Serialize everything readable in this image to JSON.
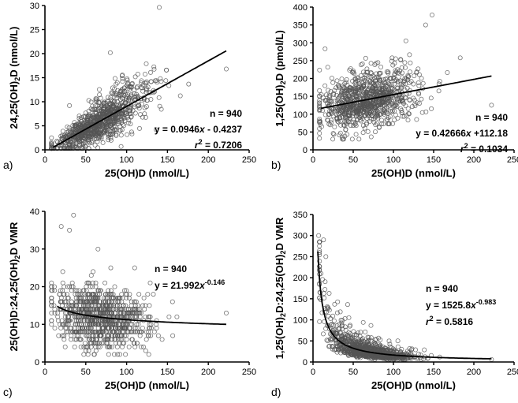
{
  "chart_data": [
    {
      "id": "a",
      "panel_label": "a)",
      "type": "scatter",
      "xlabel": "25(OH)D (nmol/L)",
      "ylabel": "24,25(OH)₂D (nmol/L)",
      "xlim": [
        0,
        250
      ],
      "ylim": [
        0,
        30
      ],
      "xticks": [
        0,
        50,
        100,
        150,
        200,
        250
      ],
      "yticks": [
        0,
        5,
        10,
        15,
        20,
        25,
        30
      ],
      "annotations": [
        "n = 940",
        "y = 0.0946x - 0.4237",
        "r² = 0.7206"
      ],
      "fit": {
        "kind": "linear",
        "slope": 0.0946,
        "intercept": -0.4237,
        "x_range": [
          10,
          222
        ]
      },
      "n": 940,
      "highlight_points": [
        [
          140,
          29.6
        ],
        [
          222,
          16.8
        ],
        [
          80,
          20.2
        ],
        [
          95,
          14.8
        ],
        [
          30,
          9.2
        ]
      ]
    },
    {
      "id": "b",
      "panel_label": "b)",
      "type": "scatter",
      "xlabel": "25(OH)D (nmol/L)",
      "ylabel": "1,25(OH)₂D (pmol/L)",
      "xlim": [
        0,
        250
      ],
      "ylim": [
        0,
        400
      ],
      "xticks": [
        0,
        50,
        100,
        150,
        200,
        250
      ],
      "yticks": [
        0,
        50,
        100,
        150,
        200,
        250,
        300,
        350,
        400
      ],
      "annotations": [
        "n = 940",
        "y = 0.42666x +112.18",
        "r² = 0.1034"
      ],
      "fit": {
        "kind": "linear",
        "slope": 0.42666,
        "intercept": 112.18,
        "x_range": [
          10,
          222
        ]
      },
      "n": 940,
      "highlight_points": [
        [
          148,
          378
        ],
        [
          140,
          350
        ],
        [
          15,
          283
        ],
        [
          183,
          258
        ],
        [
          222,
          125
        ]
      ]
    },
    {
      "id": "c",
      "panel_label": "c)",
      "type": "scatter",
      "xlabel": "25(OH)D (nmol/L)",
      "ylabel": "25(OH)D:24,25(OH)₂D VMR",
      "xlim": [
        0,
        250
      ],
      "ylim": [
        0,
        40
      ],
      "xticks": [
        0,
        50,
        100,
        150,
        200,
        250
      ],
      "yticks": [
        0,
        10,
        20,
        30,
        40
      ],
      "annotations": [
        "n = 940",
        "y = 21.992x^-0.146"
      ],
      "fit": {
        "kind": "power",
        "a": 21.992,
        "b": -0.146,
        "x_range": [
          15,
          222
        ]
      },
      "n": 940,
      "highlight_points": [
        [
          35,
          39
        ],
        [
          20,
          36
        ],
        [
          30,
          35
        ],
        [
          65,
          30
        ],
        [
          222,
          13
        ]
      ]
    },
    {
      "id": "d",
      "panel_label": "d)",
      "type": "scatter",
      "xlabel": "25(OH)D (nmol/L)",
      "ylabel": "1,25(OH)₂D:24,25(OH)₂D VMR",
      "xlim": [
        0,
        250
      ],
      "ylim": [
        0,
        350
      ],
      "xticks": [
        0,
        50,
        100,
        150,
        200,
        250
      ],
      "yticks": [
        0,
        50,
        100,
        150,
        200,
        250,
        300,
        350
      ],
      "annotations": [
        "n = 940",
        "y = 1525.8x^-0.983",
        "r² = 0.5816"
      ],
      "fit": {
        "kind": "power",
        "a": 1525.8,
        "b": -0.983,
        "x_range": [
          6,
          222
        ]
      },
      "n": 940,
      "highlight_points": [
        [
          7,
          300
        ],
        [
          13,
          290
        ],
        [
          10,
          210
        ],
        [
          16,
          250
        ],
        [
          222,
          6
        ]
      ]
    }
  ]
}
